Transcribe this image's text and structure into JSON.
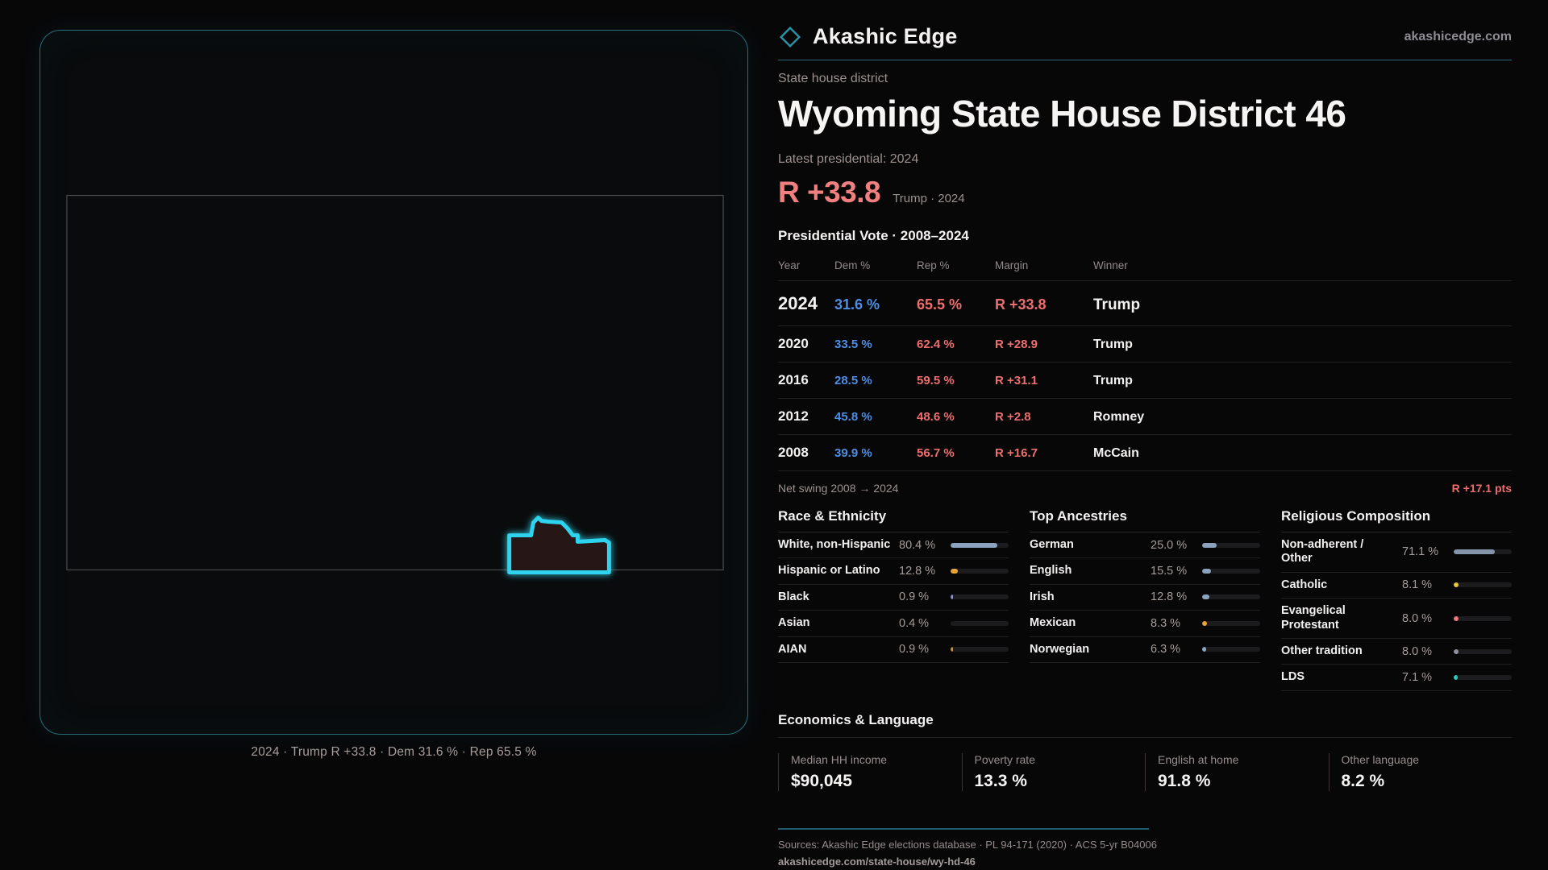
{
  "brand": {
    "name": "Akashic Edge",
    "domain": "akashicedge.com"
  },
  "page": {
    "kicker": "State house district",
    "title": "Wyoming State House District 46",
    "latest_label": "Latest presidential: 2024",
    "headline_margin": "R +33.8",
    "headline_context": "Trump · 2024"
  },
  "map": {
    "caption": "2024 · Trump R +33.8 · Dem 31.6 % · Rep 65.5 %"
  },
  "vote_table": {
    "title": "Presidential Vote · 2008–2024",
    "columns": {
      "year": "Year",
      "dem": "Dem %",
      "rep": "Rep %",
      "margin": "Margin",
      "winner": "Winner"
    },
    "rows": [
      {
        "year": "2024",
        "dem": "31.6 %",
        "rep": "65.5 %",
        "margin": "R +33.8",
        "winner": "Trump",
        "emphasis": true
      },
      {
        "year": "2020",
        "dem": "33.5 %",
        "rep": "62.4 %",
        "margin": "R +28.9",
        "winner": "Trump",
        "emphasis": false
      },
      {
        "year": "2016",
        "dem": "28.5 %",
        "rep": "59.5 %",
        "margin": "R +31.1",
        "winner": "Trump",
        "emphasis": false
      },
      {
        "year": "2012",
        "dem": "45.8 %",
        "rep": "48.6 %",
        "margin": "R +2.8",
        "winner": "Romney",
        "emphasis": false
      },
      {
        "year": "2008",
        "dem": "39.9 %",
        "rep": "56.7 %",
        "margin": "R +16.7",
        "winner": "McCain",
        "emphasis": false
      }
    ],
    "net_swing_label": "Net swing 2008 → 2024",
    "net_swing_value": "R +17.1 pts"
  },
  "demographics": [
    {
      "title": "Race & Ethnicity",
      "rows": [
        {
          "label": "White, non-Hispanic",
          "value": "80.4 %",
          "pct": 80.4,
          "color": "#8ba3bf"
        },
        {
          "label": "Hispanic or Latino",
          "value": "12.8 %",
          "pct": 12.8,
          "color": "#e8a434"
        },
        {
          "label": "Black",
          "value": "0.9 %",
          "pct": 0.9,
          "color": "#8d8ce4"
        },
        {
          "label": "Asian",
          "value": "0.4 %",
          "pct": 0.4,
          "color": "#1c1b1e"
        },
        {
          "label": "AIAN",
          "value": "0.9 %",
          "pct": 0.9,
          "color": "#d98a2b"
        }
      ]
    },
    {
      "title": "Top Ancestries",
      "rows": [
        {
          "label": "German",
          "value": "25.0 %",
          "pct": 25.0,
          "color": "#8ba3bf"
        },
        {
          "label": "English",
          "value": "15.5 %",
          "pct": 15.5,
          "color": "#8ba3bf"
        },
        {
          "label": "Irish",
          "value": "12.8 %",
          "pct": 12.8,
          "color": "#8ba3bf"
        },
        {
          "label": "Mexican",
          "value": "8.3 %",
          "pct": 8.3,
          "color": "#e8a434"
        },
        {
          "label": "Norwegian",
          "value": "6.3 %",
          "pct": 6.3,
          "color": "#8ba3bf"
        }
      ]
    },
    {
      "title": "Religious Composition",
      "rows": [
        {
          "label": "Non-adherent / Other",
          "value": "71.1 %",
          "pct": 71.1,
          "color": "#8495ab"
        },
        {
          "label": "Catholic",
          "value": "8.1 %",
          "pct": 8.1,
          "color": "#e5c63e"
        },
        {
          "label": "Evangelical Protestant",
          "value": "8.0 %",
          "pct": 8.0,
          "color": "#ee7777"
        },
        {
          "label": "Other tradition",
          "value": "8.0 %",
          "pct": 8.0,
          "color": "#8e939e"
        },
        {
          "label": "LDS",
          "value": "7.1 %",
          "pct": 7.1,
          "color": "#2ec9bd"
        }
      ]
    }
  ],
  "economics": {
    "title": "Economics & Language",
    "stats": [
      {
        "label": "Median HH income",
        "value": "$90,045"
      },
      {
        "label": "Poverty rate",
        "value": "13.3 %"
      },
      {
        "label": "English at home",
        "value": "91.8 %"
      },
      {
        "label": "Other language",
        "value": "8.2 %"
      }
    ]
  },
  "footer": {
    "sources": "Sources: Akashic Edge elections database · PL 94-171 (2020) · ACS 5-yr B04006",
    "permalink": "akashicedge.com/state-house/wy-hd-46"
  },
  "colors": {
    "accent_teal": "#2fd4ee",
    "dem_blue": "#4e8ee4",
    "rep_red": "#ee6e6e",
    "margin_red": "#f08080"
  }
}
